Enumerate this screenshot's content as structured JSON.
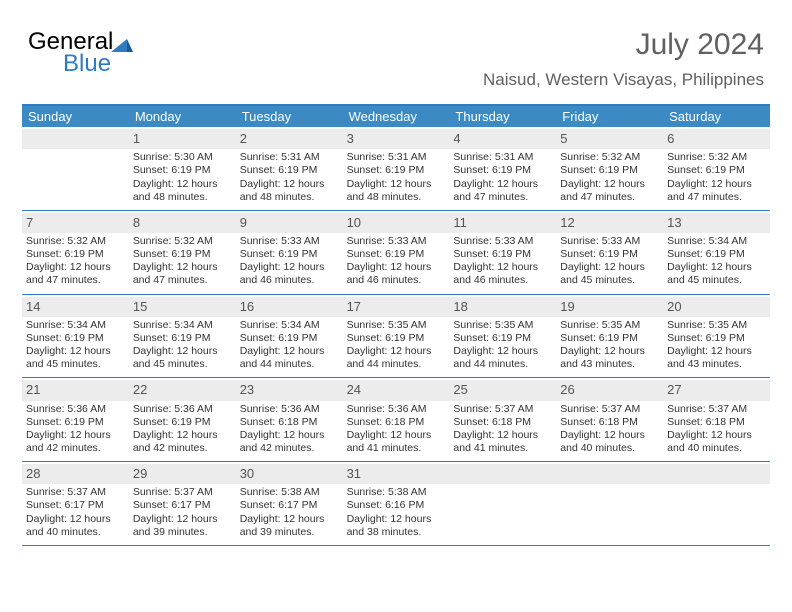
{
  "logo": {
    "text1": "General",
    "text2": "Blue"
  },
  "title": "July 2024",
  "location": "Naisud, Western Visayas, Philippines",
  "header_bg": "#3b8ac4",
  "border_color": "#2f7bc2",
  "daynum_bg": "#ececec",
  "daynames": [
    "Sunday",
    "Monday",
    "Tuesday",
    "Wednesday",
    "Thursday",
    "Friday",
    "Saturday"
  ],
  "weeks": [
    [
      {
        "n": "",
        "sr": "",
        "ss": "",
        "dl": ""
      },
      {
        "n": "1",
        "sr": "Sunrise: 5:30 AM",
        "ss": "Sunset: 6:19 PM",
        "dl": "Daylight: 12 hours and 48 minutes."
      },
      {
        "n": "2",
        "sr": "Sunrise: 5:31 AM",
        "ss": "Sunset: 6:19 PM",
        "dl": "Daylight: 12 hours and 48 minutes."
      },
      {
        "n": "3",
        "sr": "Sunrise: 5:31 AM",
        "ss": "Sunset: 6:19 PM",
        "dl": "Daylight: 12 hours and 48 minutes."
      },
      {
        "n": "4",
        "sr": "Sunrise: 5:31 AM",
        "ss": "Sunset: 6:19 PM",
        "dl": "Daylight: 12 hours and 47 minutes."
      },
      {
        "n": "5",
        "sr": "Sunrise: 5:32 AM",
        "ss": "Sunset: 6:19 PM",
        "dl": "Daylight: 12 hours and 47 minutes."
      },
      {
        "n": "6",
        "sr": "Sunrise: 5:32 AM",
        "ss": "Sunset: 6:19 PM",
        "dl": "Daylight: 12 hours and 47 minutes."
      }
    ],
    [
      {
        "n": "7",
        "sr": "Sunrise: 5:32 AM",
        "ss": "Sunset: 6:19 PM",
        "dl": "Daylight: 12 hours and 47 minutes."
      },
      {
        "n": "8",
        "sr": "Sunrise: 5:32 AM",
        "ss": "Sunset: 6:19 PM",
        "dl": "Daylight: 12 hours and 47 minutes."
      },
      {
        "n": "9",
        "sr": "Sunrise: 5:33 AM",
        "ss": "Sunset: 6:19 PM",
        "dl": "Daylight: 12 hours and 46 minutes."
      },
      {
        "n": "10",
        "sr": "Sunrise: 5:33 AM",
        "ss": "Sunset: 6:19 PM",
        "dl": "Daylight: 12 hours and 46 minutes."
      },
      {
        "n": "11",
        "sr": "Sunrise: 5:33 AM",
        "ss": "Sunset: 6:19 PM",
        "dl": "Daylight: 12 hours and 46 minutes."
      },
      {
        "n": "12",
        "sr": "Sunrise: 5:33 AM",
        "ss": "Sunset: 6:19 PM",
        "dl": "Daylight: 12 hours and 45 minutes."
      },
      {
        "n": "13",
        "sr": "Sunrise: 5:34 AM",
        "ss": "Sunset: 6:19 PM",
        "dl": "Daylight: 12 hours and 45 minutes."
      }
    ],
    [
      {
        "n": "14",
        "sr": "Sunrise: 5:34 AM",
        "ss": "Sunset: 6:19 PM",
        "dl": "Daylight: 12 hours and 45 minutes."
      },
      {
        "n": "15",
        "sr": "Sunrise: 5:34 AM",
        "ss": "Sunset: 6:19 PM",
        "dl": "Daylight: 12 hours and 45 minutes."
      },
      {
        "n": "16",
        "sr": "Sunrise: 5:34 AM",
        "ss": "Sunset: 6:19 PM",
        "dl": "Daylight: 12 hours and 44 minutes."
      },
      {
        "n": "17",
        "sr": "Sunrise: 5:35 AM",
        "ss": "Sunset: 6:19 PM",
        "dl": "Daylight: 12 hours and 44 minutes."
      },
      {
        "n": "18",
        "sr": "Sunrise: 5:35 AM",
        "ss": "Sunset: 6:19 PM",
        "dl": "Daylight: 12 hours and 44 minutes."
      },
      {
        "n": "19",
        "sr": "Sunrise: 5:35 AM",
        "ss": "Sunset: 6:19 PM",
        "dl": "Daylight: 12 hours and 43 minutes."
      },
      {
        "n": "20",
        "sr": "Sunrise: 5:35 AM",
        "ss": "Sunset: 6:19 PM",
        "dl": "Daylight: 12 hours and 43 minutes."
      }
    ],
    [
      {
        "n": "21",
        "sr": "Sunrise: 5:36 AM",
        "ss": "Sunset: 6:19 PM",
        "dl": "Daylight: 12 hours and 42 minutes."
      },
      {
        "n": "22",
        "sr": "Sunrise: 5:36 AM",
        "ss": "Sunset: 6:19 PM",
        "dl": "Daylight: 12 hours and 42 minutes."
      },
      {
        "n": "23",
        "sr": "Sunrise: 5:36 AM",
        "ss": "Sunset: 6:18 PM",
        "dl": "Daylight: 12 hours and 42 minutes."
      },
      {
        "n": "24",
        "sr": "Sunrise: 5:36 AM",
        "ss": "Sunset: 6:18 PM",
        "dl": "Daylight: 12 hours and 41 minutes."
      },
      {
        "n": "25",
        "sr": "Sunrise: 5:37 AM",
        "ss": "Sunset: 6:18 PM",
        "dl": "Daylight: 12 hours and 41 minutes."
      },
      {
        "n": "26",
        "sr": "Sunrise: 5:37 AM",
        "ss": "Sunset: 6:18 PM",
        "dl": "Daylight: 12 hours and 40 minutes."
      },
      {
        "n": "27",
        "sr": "Sunrise: 5:37 AM",
        "ss": "Sunset: 6:18 PM",
        "dl": "Daylight: 12 hours and 40 minutes."
      }
    ],
    [
      {
        "n": "28",
        "sr": "Sunrise: 5:37 AM",
        "ss": "Sunset: 6:17 PM",
        "dl": "Daylight: 12 hours and 40 minutes."
      },
      {
        "n": "29",
        "sr": "Sunrise: 5:37 AM",
        "ss": "Sunset: 6:17 PM",
        "dl": "Daylight: 12 hours and 39 minutes."
      },
      {
        "n": "30",
        "sr": "Sunrise: 5:38 AM",
        "ss": "Sunset: 6:17 PM",
        "dl": "Daylight: 12 hours and 39 minutes."
      },
      {
        "n": "31",
        "sr": "Sunrise: 5:38 AM",
        "ss": "Sunset: 6:16 PM",
        "dl": "Daylight: 12 hours and 38 minutes."
      },
      {
        "n": "",
        "sr": "",
        "ss": "",
        "dl": ""
      },
      {
        "n": "",
        "sr": "",
        "ss": "",
        "dl": ""
      },
      {
        "n": "",
        "sr": "",
        "ss": "",
        "dl": ""
      }
    ]
  ]
}
